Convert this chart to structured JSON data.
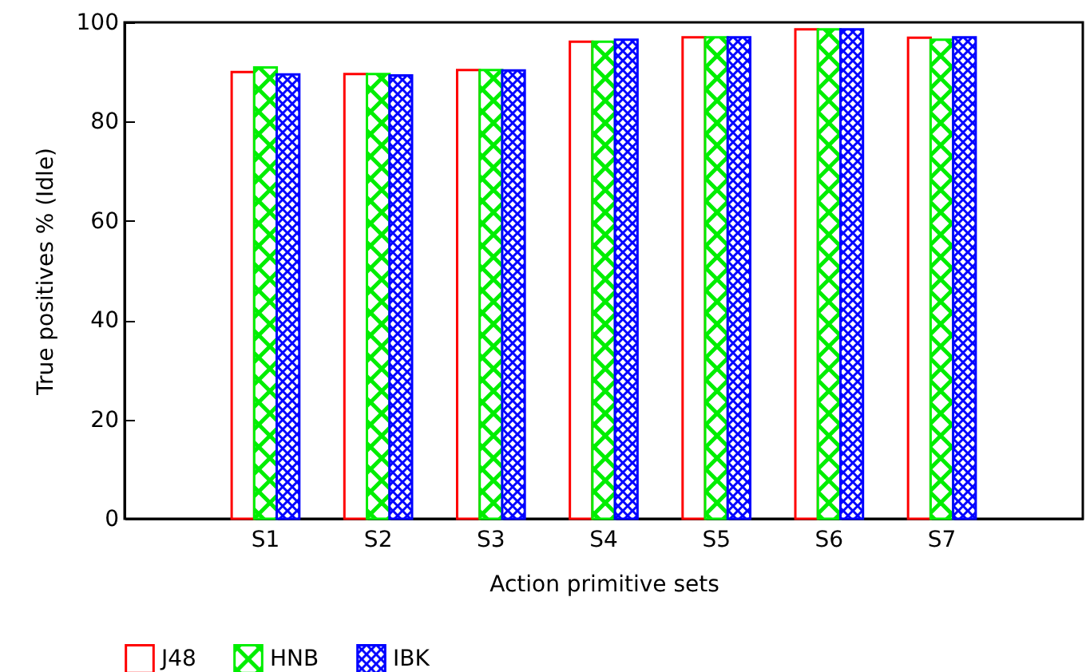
{
  "chart_data": {
    "type": "bar",
    "xlabel": "Action primitive sets",
    "ylabel": "True positives % (Idle)",
    "categories": [
      "S1",
      "S2",
      "S3",
      "S4",
      "S5",
      "S6",
      "S7"
    ],
    "series": [
      {
        "name": "J48",
        "color": "#ff0000",
        "values": [
          90.0,
          89.6,
          90.4,
          96.1,
          97.0,
          98.6,
          96.9
        ]
      },
      {
        "name": "HNB",
        "color": "#00ee00",
        "values": [
          90.9,
          89.6,
          90.4,
          96.1,
          97.0,
          98.6,
          96.5
        ]
      },
      {
        "name": "IBK",
        "color": "#0000ff",
        "values": [
          89.5,
          89.3,
          90.3,
          96.5,
          97.0,
          98.6,
          97.0
        ]
      }
    ],
    "ylim": [
      0,
      100
    ],
    "yticks": [
      0,
      20,
      40,
      60,
      80,
      100
    ],
    "grid": false,
    "legend": "bottom"
  }
}
